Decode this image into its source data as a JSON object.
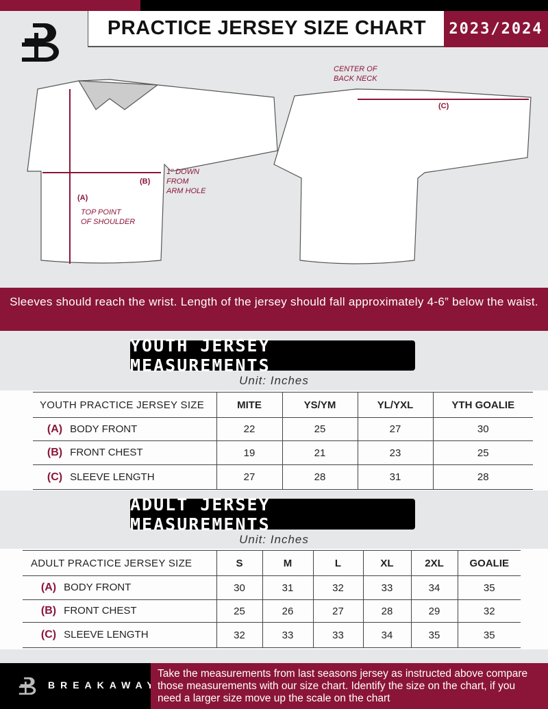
{
  "header": {
    "title": "PRACTICE JERSEY SIZE CHART",
    "season": "2023/2024"
  },
  "diagram": {
    "center_back_neck": "CENTER OF\nBACK NECK",
    "c_label": "(C)",
    "b_label": "(B)",
    "a_label": "(A)",
    "one_inch_down": "1\" DOWN\nFROM\nARM HOLE",
    "top_point": "TOP POINT\nOF SHOULDER"
  },
  "banner": "Sleeves should reach the wrist. Length of the jersey should fall approximately 4-6” below the waist.",
  "youth": {
    "title": "YOUTH JERSEY MEASUREMENTS",
    "unit": "Unit: Inches",
    "header": [
      "YOUTH PRACTICE JERSEY SIZE",
      "MITE",
      "YS/YM",
      "YL/YXL",
      "YTH GOALIE"
    ],
    "rows": [
      {
        "letter": "(A)",
        "label": "BODY FRONT",
        "values": [
          "22",
          "25",
          "27",
          "30"
        ]
      },
      {
        "letter": "(B)",
        "label": "FRONT CHEST",
        "values": [
          "19",
          "21",
          "23",
          "25"
        ]
      },
      {
        "letter": "(C)",
        "label": "SLEEVE LENGTH",
        "values": [
          "27",
          "28",
          "31",
          "28"
        ]
      }
    ]
  },
  "adult": {
    "title": "ADULT JERSEY MEASUREMENTS",
    "unit": "Unit: Inches",
    "header": [
      "ADULT PRACTICE JERSEY SIZE",
      "S",
      "M",
      "L",
      "XL",
      "2XL",
      "GOALIE"
    ],
    "rows": [
      {
        "letter": "(A)",
        "label": "BODY FRONT",
        "values": [
          "30",
          "31",
          "32",
          "33",
          "34",
          "35"
        ]
      },
      {
        "letter": "(B)",
        "label": "FRONT CHEST",
        "values": [
          "25",
          "26",
          "27",
          "28",
          "29",
          "32"
        ]
      },
      {
        "letter": "(C)",
        "label": "SLEEVE LENGTH",
        "values": [
          "32",
          "33",
          "33",
          "34",
          "35",
          "35"
        ]
      }
    ]
  },
  "footer": {
    "brand": "BREAKAWAY",
    "text": "Take the measurements from last seasons jersey as instructed above compare those measurements  with our size chart. Identify the size on the chart, if you need a larger size move up the scale on the chart"
  },
  "colors": {
    "accent": "#8a1538",
    "background": "#e6e7e8"
  }
}
